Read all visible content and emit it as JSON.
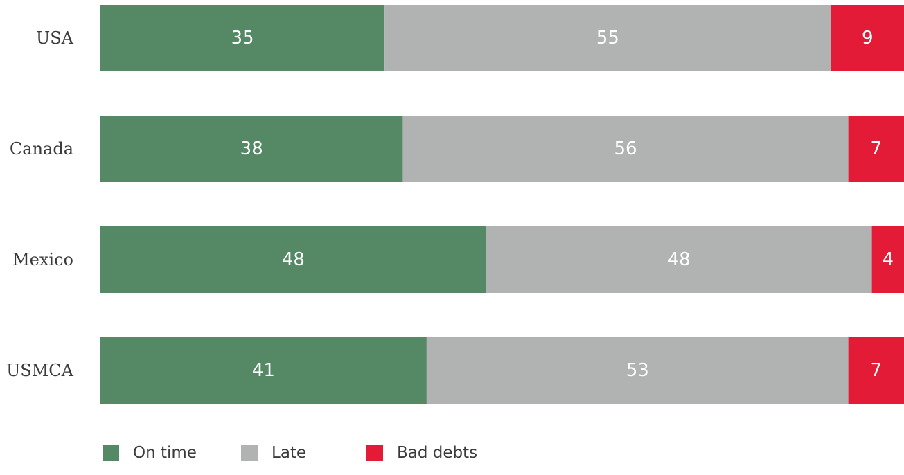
{
  "chart_data": {
    "type": "bar",
    "orientation": "horizontal",
    "stacked": true,
    "categories": [
      "USA",
      "Canada",
      "Mexico",
      "USMCA"
    ],
    "series": [
      {
        "name": "On time",
        "color": "#558865",
        "values": [
          35,
          38,
          48,
          41
        ]
      },
      {
        "name": "Late",
        "color": "#b1b3b3",
        "values": [
          55,
          56,
          48,
          53
        ]
      },
      {
        "name": "Bad debts",
        "color": "#e31b37",
        "values": [
          9,
          7,
          4,
          7
        ]
      }
    ],
    "title": "",
    "xlabel": "",
    "ylabel": "",
    "grid": false,
    "legend": "bottom-left",
    "data_labels": true
  }
}
